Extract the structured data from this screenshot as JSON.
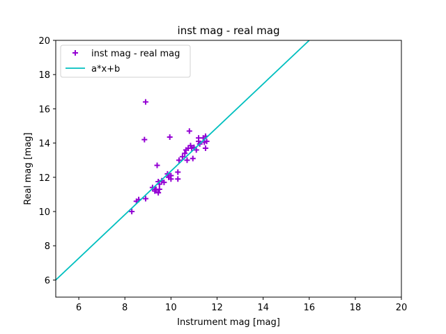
{
  "chart_data": {
    "type": "scatter",
    "title": "inst mag - real mag",
    "xlabel": "Instrument mag [mag]",
    "ylabel": "Real mag [mag]",
    "xlim": [
      5,
      20
    ],
    "ylim": [
      5,
      20
    ],
    "xticks": [
      "6",
      "8",
      "10",
      "12",
      "14",
      "16",
      "18",
      "20"
    ],
    "yticks": [
      "6",
      "8",
      "10",
      "12",
      "14",
      "16",
      "18",
      "20"
    ],
    "grid": false,
    "legend_position": "top-left",
    "series": [
      {
        "name": "inst mag - real mag",
        "kind": "scatter",
        "marker": "plus",
        "color": "#9400d3",
        "points": [
          [
            8.3,
            10.0
          ],
          [
            8.5,
            10.6
          ],
          [
            8.6,
            10.7
          ],
          [
            8.9,
            10.75
          ],
          [
            8.85,
            14.2
          ],
          [
            8.9,
            16.4
          ],
          [
            9.2,
            11.4
          ],
          [
            9.3,
            11.2
          ],
          [
            9.35,
            11.3
          ],
          [
            9.4,
            12.7
          ],
          [
            9.45,
            11.1
          ],
          [
            9.5,
            11.3
          ],
          [
            9.45,
            11.75
          ],
          [
            9.5,
            11.6
          ],
          [
            9.6,
            11.8
          ],
          [
            9.7,
            11.7
          ],
          [
            9.85,
            12.2
          ],
          [
            9.9,
            12.0
          ],
          [
            9.95,
            14.35
          ],
          [
            10.0,
            11.9
          ],
          [
            10.0,
            12.1
          ],
          [
            10.3,
            12.3
          ],
          [
            10.3,
            11.9
          ],
          [
            10.35,
            13.0
          ],
          [
            10.5,
            13.2
          ],
          [
            10.6,
            13.4
          ],
          [
            10.65,
            13.6
          ],
          [
            10.7,
            13.0
          ],
          [
            10.75,
            13.7
          ],
          [
            10.8,
            14.7
          ],
          [
            10.85,
            13.85
          ],
          [
            10.9,
            13.7
          ],
          [
            10.95,
            13.1
          ],
          [
            11.0,
            13.75
          ],
          [
            11.1,
            13.6
          ],
          [
            11.2,
            14.3
          ],
          [
            11.2,
            14.1
          ],
          [
            11.25,
            13.95
          ],
          [
            11.4,
            14.3
          ],
          [
            11.45,
            14.05
          ],
          [
            11.5,
            13.7
          ],
          [
            11.5,
            14.4
          ],
          [
            11.55,
            14.1
          ]
        ]
      },
      {
        "name": "a*x+b",
        "kind": "line",
        "color": "#00bfbf",
        "points": [
          [
            5.0,
            6.0
          ],
          [
            16.0,
            20.0
          ]
        ]
      }
    ]
  }
}
